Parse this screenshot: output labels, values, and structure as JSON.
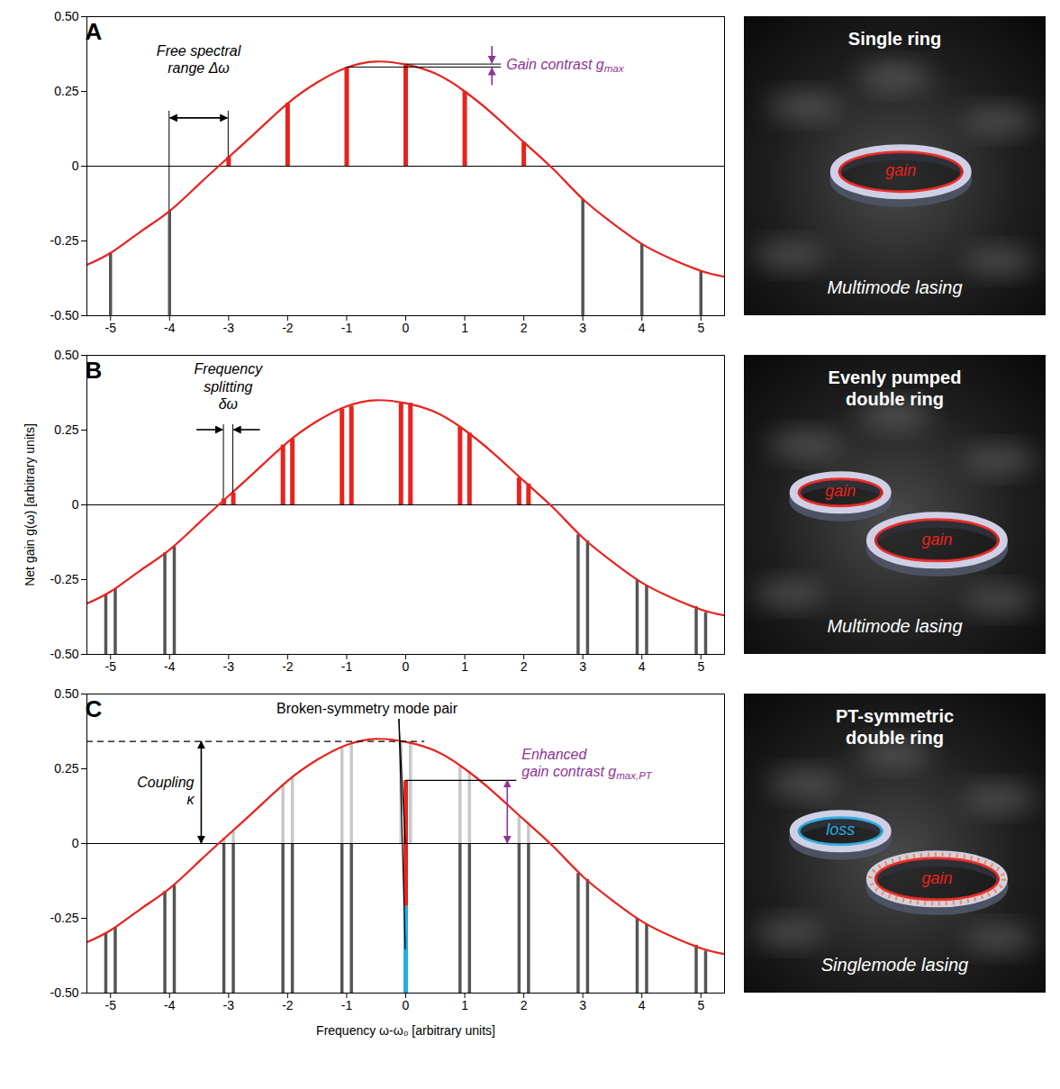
{
  "chart_data": [
    {
      "type": "bar",
      "panel_label": "A",
      "xlim": [
        -5.4,
        5.4
      ],
      "xticks": [
        -5,
        -4,
        -3,
        -2,
        -1,
        0,
        1,
        2,
        3,
        4,
        5
      ],
      "ylim": [
        -0.5,
        0.5
      ],
      "yticks": [
        {
          "value": -0.5,
          "label": "-0.50"
        },
        -0.25,
        0,
        0.25,
        {
          "value": 0.5,
          "label": "0.50"
        }
      ],
      "series": [
        {
          "type": "line",
          "color": "#e8231e",
          "x": [
            -5.4,
            -5,
            -4.5,
            -4,
            -3.5,
            -3,
            -2.5,
            -2,
            -1.5,
            -1,
            -0.5,
            0,
            0.5,
            1,
            1.5,
            2,
            2.5,
            3,
            3.5,
            4,
            4.5,
            5,
            5.4
          ],
          "values": [
            -0.33,
            -0.29,
            -0.22,
            -0.15,
            -0.06,
            0.03,
            0.12,
            0.21,
            0.28,
            0.33,
            0.35,
            0.34,
            0.31,
            0.25,
            0.17,
            0.08,
            -0.01,
            -0.11,
            -0.19,
            -0.26,
            -0.31,
            -0.35,
            -0.37
          ]
        },
        {
          "type": "bar",
          "color": "#555555",
          "x": [
            -5,
            -4,
            3,
            4,
            5
          ],
          "base": [
            -0.5,
            -0.5,
            -0.5,
            -0.5,
            -0.5
          ],
          "values": [
            -0.29,
            -0.15,
            -0.11,
            -0.26,
            -0.35
          ]
        },
        {
          "type": "bar",
          "color": "#e8231e",
          "x": [
            -3,
            -2,
            -1,
            0,
            1,
            2
          ],
          "base": [
            0,
            0,
            0,
            0,
            0,
            0
          ],
          "values": [
            0.03,
            0.21,
            0.33,
            0.34,
            0.25,
            0.08
          ]
        }
      ],
      "annotations": {
        "fsr": {
          "label": "Free spectral range Δω",
          "from": -4,
          "to": -3
        },
        "gain_contrast": {
          "label": "Gain contrast g",
          "sub": "max"
        }
      },
      "illustration": {
        "title": "Single ring",
        "rings": [
          {
            "label": "gain",
            "color": "#e8231e",
            "line_style": "solid"
          }
        ],
        "caption": "Multimode lasing"
      }
    },
    {
      "type": "bar",
      "panel_label": "B",
      "y_label": "Net gain g(ω) [arbitrary units]",
      "xlim": [
        -5.4,
        5.4
      ],
      "xticks": [
        -5,
        -4,
        -3,
        -2,
        -1,
        0,
        1,
        2,
        3,
        4,
        5
      ],
      "ylim": [
        -0.5,
        0.5
      ],
      "yticks": [
        {
          "value": -0.5,
          "label": "-0.50"
        },
        -0.25,
        0,
        0.25,
        {
          "value": 0.5,
          "label": "0.50"
        }
      ],
      "series": [
        {
          "type": "line",
          "color": "#e8231e",
          "x": [
            -5.4,
            -5,
            -4.5,
            -4,
            -3.5,
            -3,
            -2.5,
            -2,
            -1.5,
            -1,
            -0.5,
            0,
            0.5,
            1,
            1.5,
            2,
            2.5,
            3,
            3.5,
            4,
            4.5,
            5,
            5.4
          ],
          "values": [
            -0.33,
            -0.29,
            -0.22,
            -0.15,
            -0.06,
            0.03,
            0.12,
            0.21,
            0.28,
            0.33,
            0.35,
            0.34,
            0.31,
            0.25,
            0.17,
            0.08,
            -0.01,
            -0.11,
            -0.19,
            -0.26,
            -0.31,
            -0.35,
            -0.37
          ]
        },
        {
          "type": "bar",
          "color": "#555555",
          "x": [
            -5.08,
            -4.92,
            -4.08,
            -3.92,
            2.92,
            3.08,
            3.92,
            4.08,
            4.92,
            5.08
          ],
          "base": [
            -0.5,
            -0.5,
            -0.5,
            -0.5,
            -0.5,
            -0.5,
            -0.5,
            -0.5,
            -0.5,
            -0.5
          ],
          "values": [
            -0.3,
            -0.28,
            -0.16,
            -0.14,
            -0.1,
            -0.12,
            -0.25,
            -0.27,
            -0.34,
            -0.36
          ]
        },
        {
          "type": "bar",
          "color": "#e8231e",
          "x": [
            -3.08,
            -2.92,
            -2.08,
            -1.92,
            -1.08,
            -0.92,
            -0.08,
            0.08,
            0.92,
            1.08,
            1.92,
            2.08
          ],
          "base": [
            0,
            0,
            0,
            0,
            0,
            0,
            0,
            0,
            0,
            0,
            0,
            0
          ],
          "values": [
            0.02,
            0.04,
            0.2,
            0.22,
            0.32,
            0.33,
            0.34,
            0.34,
            0.26,
            0.24,
            0.09,
            0.07
          ]
        }
      ],
      "annotations": {
        "splitting": {
          "label": "Frequency splitting δω",
          "from": -3.08,
          "to": -2.92
        }
      },
      "illustration": {
        "title": "Evenly pumped double ring",
        "rings": [
          {
            "label": "gain",
            "color": "#e8231e",
            "line_style": "solid"
          },
          {
            "label": "gain",
            "color": "#e8231e",
            "line_style": "solid"
          }
        ],
        "caption": "Multimode lasing"
      }
    },
    {
      "type": "bar",
      "panel_label": "C",
      "x_label": "Frequency ω-ω₀ [arbitrary units]",
      "xlim": [
        -5.4,
        5.4
      ],
      "xticks": [
        -5,
        -4,
        -3,
        -2,
        -1,
        0,
        1,
        2,
        3,
        4,
        5
      ],
      "ylim": [
        -0.5,
        0.5
      ],
      "yticks": [
        {
          "value": -0.5,
          "label": "-0.50"
        },
        -0.25,
        0,
        0.25,
        {
          "value": 0.5,
          "label": "0.50"
        }
      ],
      "series": [
        {
          "type": "line",
          "color": "#e8231e",
          "x": [
            -5.4,
            -5,
            -4.5,
            -4,
            -3.5,
            -3,
            -2.5,
            -2,
            -1.5,
            -1,
            -0.5,
            0,
            0.5,
            1,
            1.5,
            2,
            2.5,
            3,
            3.5,
            4,
            4.5,
            5,
            5.4
          ],
          "values": [
            -0.33,
            -0.29,
            -0.22,
            -0.15,
            -0.06,
            0.03,
            0.12,
            0.21,
            0.28,
            0.33,
            0.35,
            0.34,
            0.31,
            0.25,
            0.17,
            0.08,
            -0.01,
            -0.11,
            -0.19,
            -0.26,
            -0.31,
            -0.35,
            -0.37
          ]
        },
        {
          "type": "bar",
          "color": "#c8c8c8",
          "x": [
            -3.08,
            -2.92,
            -2.08,
            -1.92,
            -1.08,
            -0.92,
            -0.08,
            0.08,
            0.92,
            1.08,
            1.92,
            2.08
          ],
          "base": [
            0,
            0,
            0,
            0,
            0,
            0,
            0,
            0,
            0,
            0,
            0,
            0
          ],
          "values": [
            0.02,
            0.04,
            0.2,
            0.22,
            0.32,
            0.33,
            0.34,
            0.34,
            0.26,
            0.24,
            0.09,
            0.07
          ]
        },
        {
          "type": "bar",
          "color": "#555555",
          "x": [
            -5.08,
            -4.92,
            -4.08,
            -3.92,
            2.92,
            3.08,
            3.92,
            4.08,
            4.92,
            5.08
          ],
          "base": [
            -0.5,
            -0.5,
            -0.5,
            -0.5,
            -0.5,
            -0.5,
            -0.5,
            -0.5,
            -0.5,
            -0.5
          ],
          "values": [
            -0.3,
            -0.28,
            -0.16,
            -0.14,
            -0.1,
            -0.12,
            -0.25,
            -0.27,
            -0.34,
            -0.36
          ]
        },
        {
          "type": "bar",
          "color": "#555555",
          "x": [
            -3.08,
            -2.92,
            -2.08,
            -1.92,
            -1.08,
            -0.92,
            0.92,
            1.08,
            1.92,
            2.08
          ],
          "base": [
            -0.5,
            -0.5,
            -0.5,
            -0.5,
            -0.5,
            -0.5,
            -0.5,
            -0.5,
            -0.5,
            -0.5
          ],
          "values": [
            0,
            0,
            0,
            0,
            0,
            0,
            0,
            0,
            0,
            0
          ]
        },
        {
          "type": "bar",
          "color": "#e8231e",
          "x": [
            0
          ],
          "base": [
            -0.21
          ],
          "values": [
            0.21
          ]
        },
        {
          "type": "bar",
          "color": "#29abe2",
          "x": [
            0
          ],
          "base": [
            -0.5
          ],
          "values": [
            -0.21
          ]
        }
      ],
      "annotations": {
        "coupling": {
          "label": "Coupling κ",
          "from": 0,
          "to": 0.34
        },
        "broken_pair": {
          "label": "Broken-symmetry mode pair"
        },
        "enhanced": {
          "label": "Enhanced gain contrast g",
          "sub": "max,PT",
          "from": 0,
          "to": 0.21
        }
      },
      "illustration": {
        "title": "PT-symmetric double ring",
        "rings": [
          {
            "label": "loss",
            "color": "#29abe2",
            "line_style": "solid"
          },
          {
            "label": "gain",
            "color": "#e8231e",
            "line_style": "dotted"
          }
        ],
        "caption": "Singlemode lasing"
      }
    }
  ]
}
